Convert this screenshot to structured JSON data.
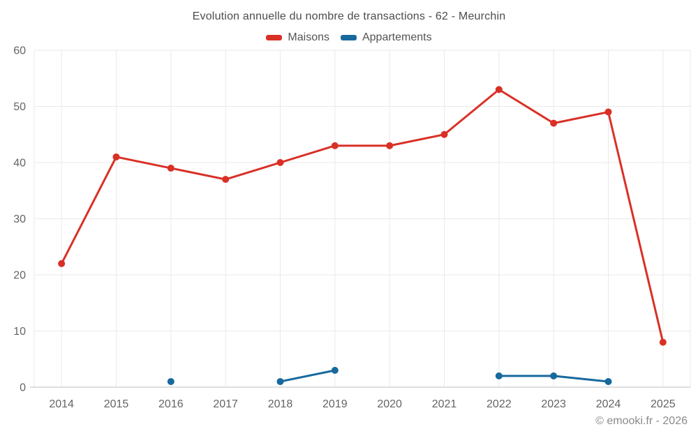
{
  "header": {
    "title": "Evolution annuelle du nombre de transactions - 62 - Meurchin"
  },
  "footer": {
    "copyright": "© emooki.fr - 2026"
  },
  "chart_data": {
    "type": "line",
    "title": "Evolution annuelle du nombre de transactions - 62 - Meurchin",
    "categories": [
      "2014",
      "2015",
      "2016",
      "2017",
      "2018",
      "2019",
      "2020",
      "2021",
      "2022",
      "2023",
      "2024",
      "2025"
    ],
    "series": [
      {
        "name": "Maisons",
        "color": "#d93026",
        "values": [
          22,
          41,
          39,
          37,
          40,
          43,
          43,
          45,
          53,
          47,
          49,
          8
        ]
      },
      {
        "name": "Appartements",
        "color": "#17699d",
        "values": [
          null,
          null,
          1,
          null,
          1,
          3,
          null,
          null,
          2,
          2,
          1,
          null
        ]
      }
    ],
    "ylim": [
      0,
      60
    ],
    "yticks": [
      0,
      10,
      20,
      30,
      40,
      50,
      60
    ],
    "grid": true,
    "legend_position": "top",
    "xlabel": "",
    "ylabel": "",
    "colors": {
      "gridline": "#e9e9e9",
      "axis_line": "#cccccc",
      "tick_text": "#646464"
    }
  }
}
